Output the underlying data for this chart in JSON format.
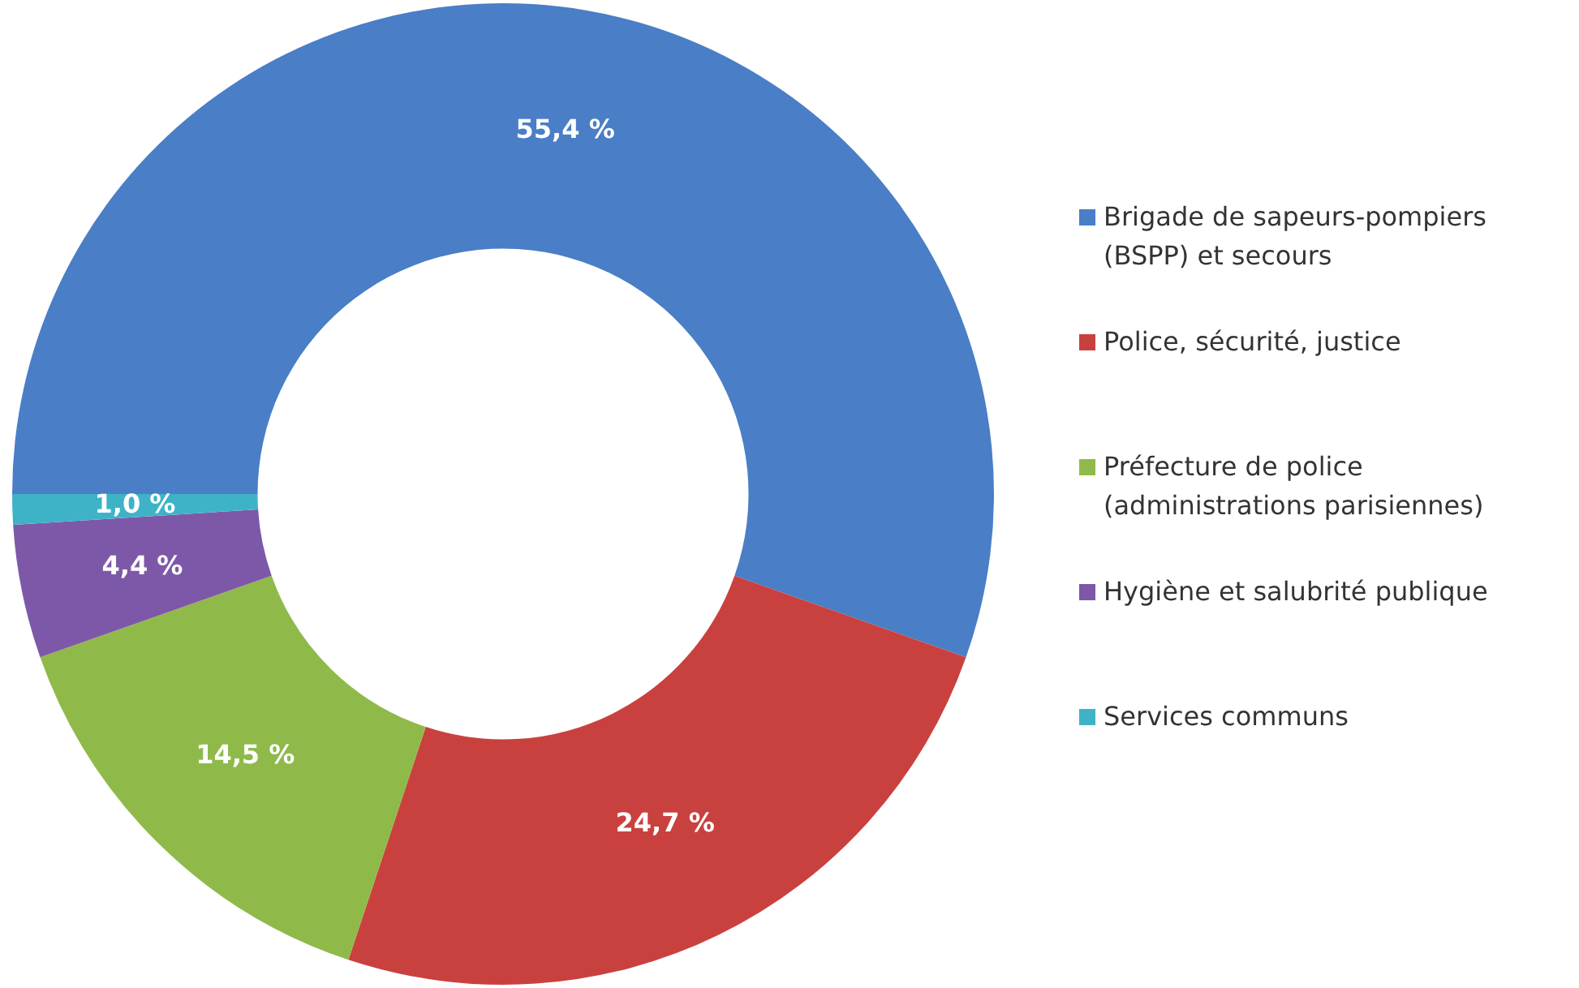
{
  "chart_data": {
    "type": "donut",
    "categories": [
      "Brigade de sapeurs-pompiers (BSPP) et secours",
      "Police, sécurité, justice",
      "Préfecture de police (administrations parisiennes)",
      "Hygiène et salubrité publique",
      "Services communs"
    ],
    "values": [
      55.4,
      24.7,
      14.5,
      4.4,
      1.0
    ],
    "colors": [
      "#4a7ec6",
      "#c9413f",
      "#8fba4a",
      "#7e58a8",
      "#3eb3c8"
    ],
    "value_labels": [
      "55,4 %",
      "24,7 %",
      "14,5 %",
      "4,4 %",
      "1,0 %"
    ],
    "legend": "right"
  }
}
